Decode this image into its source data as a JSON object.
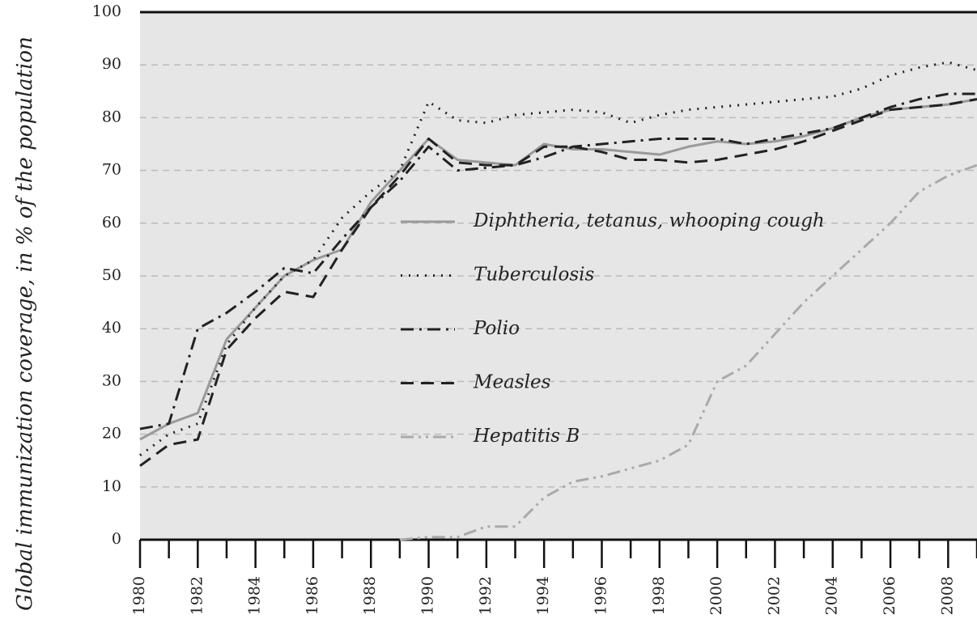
{
  "chart_data": {
    "type": "line",
    "ylabel": "Global immunization coverage, in % of the population",
    "x": [
      1980,
      1981,
      1982,
      1983,
      1984,
      1985,
      1986,
      1987,
      1988,
      1989,
      1990,
      1991,
      1992,
      1993,
      1994,
      1995,
      1996,
      1997,
      1998,
      1999,
      2000,
      2001,
      2002,
      2003,
      2004,
      2005,
      2006,
      2007,
      2008,
      2009
    ],
    "series": [
      {
        "name": "Diphtheria, tetanus, whooping cough",
        "color": "#999999",
        "dash": "none",
        "values": [
          19,
          22,
          24,
          38,
          44,
          50,
          53,
          55,
          64,
          70,
          76,
          72,
          71.5,
          71,
          75,
          74,
          74,
          73.5,
          73,
          74.5,
          75.5,
          75,
          75.5,
          76.5,
          78,
          80,
          81.5,
          82,
          82.5,
          83.5
        ]
      },
      {
        "name": "Tuberculosis",
        "color": "#222222",
        "dash": "2 8",
        "values": [
          16,
          20,
          22,
          37,
          44,
          50,
          53,
          61,
          66,
          70,
          83,
          79.5,
          79,
          80.5,
          81,
          81.5,
          81,
          79,
          80.5,
          81.5,
          82,
          82.5,
          83,
          83.5,
          84,
          85.5,
          88,
          89.5,
          90.5,
          89
        ]
      },
      {
        "name": "Polio",
        "color": "#222222",
        "dash": "16 7 3 7",
        "values": [
          21,
          22,
          40,
          43,
          47,
          51.5,
          50.5,
          57,
          63,
          68,
          74.5,
          70,
          70.5,
          71,
          72.5,
          74.5,
          75,
          75.5,
          76,
          76,
          76,
          75,
          76,
          77,
          78,
          80,
          82,
          83.5,
          84.5,
          84.5
        ]
      },
      {
        "name": "Measles",
        "color": "#222222",
        "dash": "16 9",
        "values": [
          14,
          18,
          19,
          36,
          42,
          47,
          46,
          55,
          63,
          69,
          76,
          71.5,
          71,
          71,
          74.5,
          74.5,
          73.5,
          72,
          72,
          71.5,
          72,
          73,
          74,
          75.5,
          77.5,
          79.5,
          81.5,
          82,
          82.5,
          83.5
        ]
      },
      {
        "name": "Hepatitis B",
        "color": "#aaaaaa",
        "dash": "16 6 3 6 3 6",
        "values": [
          null,
          null,
          null,
          null,
          null,
          null,
          null,
          null,
          null,
          0,
          0.5,
          0.5,
          2.5,
          2.5,
          8,
          11,
          12,
          13.5,
          15,
          18,
          30,
          33,
          39,
          45,
          50,
          55,
          60,
          66,
          69,
          71
        ]
      }
    ],
    "xlim": [
      1980,
      2009
    ],
    "xticks": [
      1980,
      1982,
      1984,
      1986,
      1988,
      1990,
      1992,
      1994,
      1996,
      1998,
      2000,
      2002,
      2004,
      2006,
      2008
    ],
    "ylim": [
      0,
      100
    ],
    "yticks": [
      0,
      10,
      20,
      30,
      40,
      50,
      60,
      70,
      80,
      90,
      100
    ],
    "grid": true
  }
}
